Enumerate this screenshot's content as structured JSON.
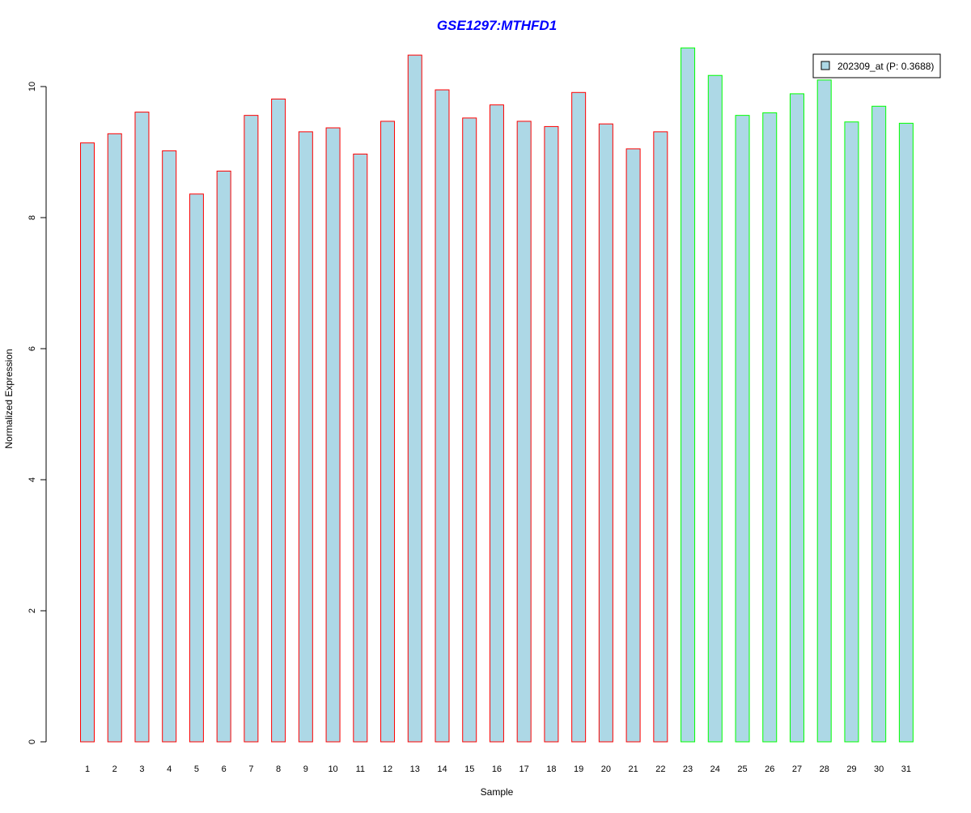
{
  "chart_data": {
    "type": "bar",
    "title": "GSE1297:MTHFD1",
    "xlabel": "Sample",
    "ylabel": "Normalized Expression",
    "ylim": [
      0,
      10.6
    ],
    "yticks": [
      0,
      2,
      4,
      6,
      8,
      10
    ],
    "grid": false,
    "legend": {
      "position": "top-right",
      "entries": [
        {
          "label": "202309_at (P: 0.3688)",
          "fill": "#add8e6",
          "border": "#000000"
        }
      ]
    },
    "categories": [
      "1",
      "2",
      "3",
      "4",
      "5",
      "6",
      "7",
      "8",
      "9",
      "10",
      "11",
      "12",
      "13",
      "14",
      "15",
      "16",
      "17",
      "18",
      "19",
      "20",
      "21",
      "22",
      "23",
      "24",
      "25",
      "26",
      "27",
      "28",
      "29",
      "30",
      "31"
    ],
    "series": [
      {
        "values": [
          9.14,
          9.28,
          9.61,
          9.02,
          8.36,
          8.71,
          9.56,
          9.81,
          9.31,
          9.37,
          8.97,
          9.47,
          10.48,
          9.95,
          9.52,
          9.72,
          9.47,
          9.39,
          9.91,
          9.43,
          9.05,
          9.31,
          10.59,
          10.17,
          9.56,
          9.6,
          9.89,
          10.1,
          9.46,
          9.7,
          9.44
        ],
        "group": [
          "red",
          "red",
          "red",
          "red",
          "red",
          "red",
          "red",
          "red",
          "red",
          "red",
          "red",
          "red",
          "red",
          "red",
          "red",
          "red",
          "red",
          "red",
          "red",
          "red",
          "red",
          "red",
          "green",
          "green",
          "green",
          "green",
          "green",
          "green",
          "green",
          "green",
          "green"
        ]
      }
    ],
    "colors": {
      "bar_fill": "#add8e6",
      "group_red": "#ff0000",
      "group_green": "#00ff00",
      "title": "#0000ff",
      "axis": "#000000"
    }
  }
}
